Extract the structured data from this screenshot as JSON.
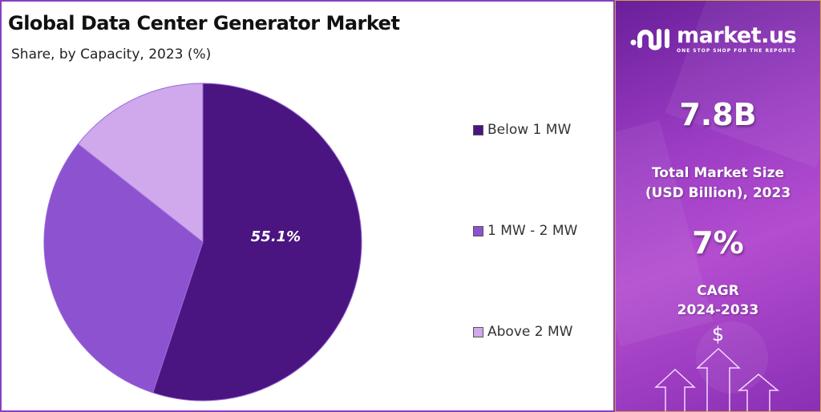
{
  "chart_data": {
    "type": "pie",
    "title": "Global Data Center Generator Market",
    "subtitle": "Share, by Capacity, 2023 (%)",
    "categories": [
      "Below 1 MW",
      "1 MW - 2 MW",
      "Above 2 MW"
    ],
    "values": [
      55.1,
      30.5,
      14.4
    ],
    "colors": [
      "#4a1580",
      "#8c52d0",
      "#d0a8ec"
    ],
    "data_labels": [
      "55.1%",
      "",
      ""
    ],
    "legend_position": "right"
  },
  "side_panel": {
    "brand": "market.us",
    "tagline": "ONE STOP SHOP FOR THE REPORTS",
    "market_size": "7.8B",
    "market_size_label_1": "Total Market Size",
    "market_size_label_2": "(USD Billion), 2023",
    "cagr": "7%",
    "cagr_label_1": "CAGR",
    "cagr_label_2": "2024-2033",
    "dollar_symbol": "$",
    "icons": [
      "market-us-logo",
      "dollar-icon",
      "up-arrow-icon"
    ]
  }
}
